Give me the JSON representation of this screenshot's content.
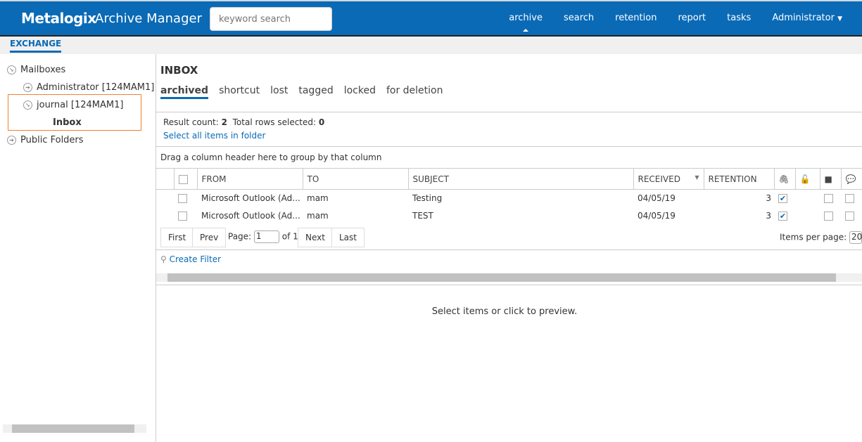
{
  "header": {
    "logo": "Metalogix",
    "app_name": "Archive Manager",
    "search_placeholder": "keyword search",
    "nav": [
      "archive",
      "search",
      "retention",
      "report",
      "tasks",
      "Administrator"
    ]
  },
  "subnav": {
    "tab": "EXCHANGE"
  },
  "sidebar": {
    "items": [
      "Mailboxes",
      "Administrator [124MAM1]",
      "journal [124MAM1]",
      "Inbox",
      "Public Folders"
    ]
  },
  "main": {
    "title": "INBOX",
    "tabs": [
      "archived",
      "shortcut",
      "lost",
      "tagged",
      "locked",
      "for deletion"
    ],
    "result_label": "Result count:",
    "result_count": "2",
    "selected_label": "Total rows selected:",
    "selected_count": "0",
    "select_all": "Select all items in folder",
    "group_hint": "Drag a column header here to group by that column",
    "columns": [
      "FROM",
      "TO",
      "SUBJECT",
      "RECEIVED",
      "RETENTION"
    ],
    "rows": [
      {
        "from": "Microsoft Outlook (Ad...",
        "to": "mam",
        "subject": "Testing",
        "received": "04/05/19",
        "retention": "3",
        "attachment": true
      },
      {
        "from": "Microsoft Outlook (Ad...",
        "to": "mam",
        "subject": "TEST",
        "received": "04/05/19",
        "retention": "3",
        "attachment": true
      }
    ],
    "pager": {
      "first": "First",
      "prev": "Prev",
      "page_label": "Page:",
      "page": "1",
      "of": "of 1",
      "next": "Next",
      "last": "Last",
      "per_page_label": "Items per page:",
      "per_page": "20"
    },
    "create_filter": "Create Filter",
    "preview": "Select items or click to preview."
  }
}
